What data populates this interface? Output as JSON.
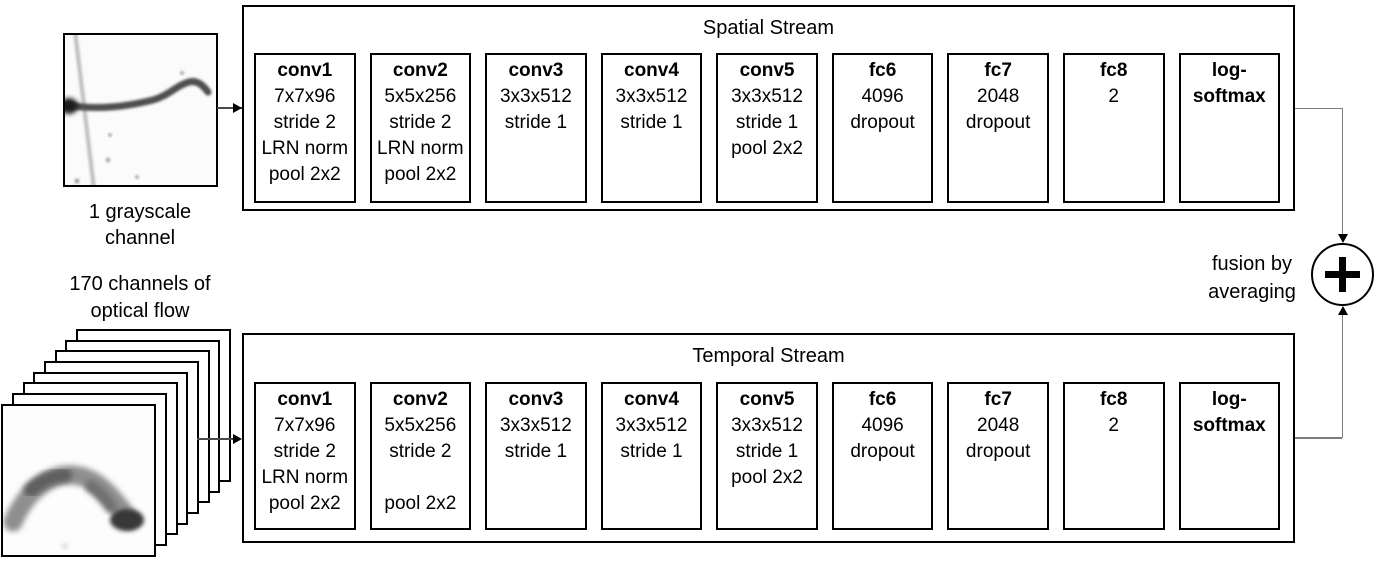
{
  "diagram": {
    "inputs": {
      "grayscale": {
        "label": "1 grayscale\nchannel"
      },
      "flow": {
        "label": "170 channels of\noptical flow"
      }
    },
    "fusion": {
      "label": "fusion by\naveraging",
      "symbol": "+"
    },
    "colors": {
      "border": "#000000",
      "connector": "#7d7d7d",
      "background": "#ffffff"
    },
    "streams": [
      {
        "id": "spatial",
        "title": "Spatial Stream",
        "layers": [
          {
            "name": "conv1",
            "lines": [
              "7x7x96",
              "stride 2",
              "LRN norm",
              "pool 2x2"
            ]
          },
          {
            "name": "conv2",
            "lines": [
              "5x5x256",
              "stride 2",
              "LRN norm",
              "pool 2x2"
            ]
          },
          {
            "name": "conv3",
            "lines": [
              "3x3x512",
              "stride 1"
            ]
          },
          {
            "name": "conv4",
            "lines": [
              "3x3x512",
              "stride 1"
            ]
          },
          {
            "name": "conv5",
            "lines": [
              "3x3x512",
              "stride 1",
              "pool 2x2"
            ]
          },
          {
            "name": "fc6",
            "lines": [
              "4096",
              "dropout"
            ]
          },
          {
            "name": "fc7",
            "lines": [
              "2048",
              "dropout"
            ]
          },
          {
            "name": "fc8",
            "lines": [
              "2"
            ]
          },
          {
            "name": "log-\nsoftmax",
            "lines": []
          }
        ]
      },
      {
        "id": "temporal",
        "title": "Temporal Stream",
        "layers": [
          {
            "name": "conv1",
            "lines": [
              "7x7x96",
              "stride 2",
              "LRN norm",
              "pool 2x2"
            ]
          },
          {
            "name": "conv2",
            "lines": [
              "5x5x256",
              "stride 2",
              "",
              "pool 2x2"
            ]
          },
          {
            "name": "conv3",
            "lines": [
              "3x3x512",
              "stride 1"
            ]
          },
          {
            "name": "conv4",
            "lines": [
              "3x3x512",
              "stride 1"
            ]
          },
          {
            "name": "conv5",
            "lines": [
              "3x3x512",
              "stride 1",
              "pool 2x2"
            ]
          },
          {
            "name": "fc6",
            "lines": [
              "4096",
              "dropout"
            ]
          },
          {
            "name": "fc7",
            "lines": [
              "2048",
              "dropout"
            ]
          },
          {
            "name": "fc8",
            "lines": [
              "2"
            ]
          },
          {
            "name": "log-\nsoftmax",
            "lines": []
          }
        ]
      }
    ]
  }
}
